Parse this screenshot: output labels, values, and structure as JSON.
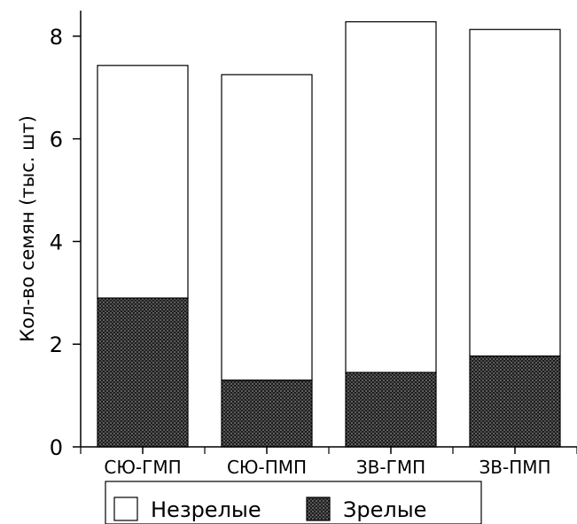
{
  "chart_data": {
    "type": "bar",
    "stacked": true,
    "ylabel": "Кол-во семян (тыс. шт)",
    "xlabel": "",
    "categories": [
      "СЮ-ГМП",
      "СЮ-ПМП",
      "ЗВ-ГМП",
      "ЗВ-ПМП"
    ],
    "series": [
      {
        "name": "Зрелые",
        "values": [
          2.9,
          1.3,
          1.45,
          1.77
        ],
        "fill": "#2a2a2a",
        "pattern": "dotted-dark"
      },
      {
        "name": "Незрелые",
        "values": [
          4.53,
          5.95,
          6.83,
          6.36
        ],
        "fill": "#ffffff"
      }
    ],
    "ylim": [
      0,
      8.5
    ],
    "yticks": [
      "0",
      "2",
      "4",
      "6",
      "8"
    ],
    "grid": false,
    "legend": {
      "position": "bottom",
      "items": [
        "Незрелые",
        "Зрелые"
      ]
    }
  }
}
